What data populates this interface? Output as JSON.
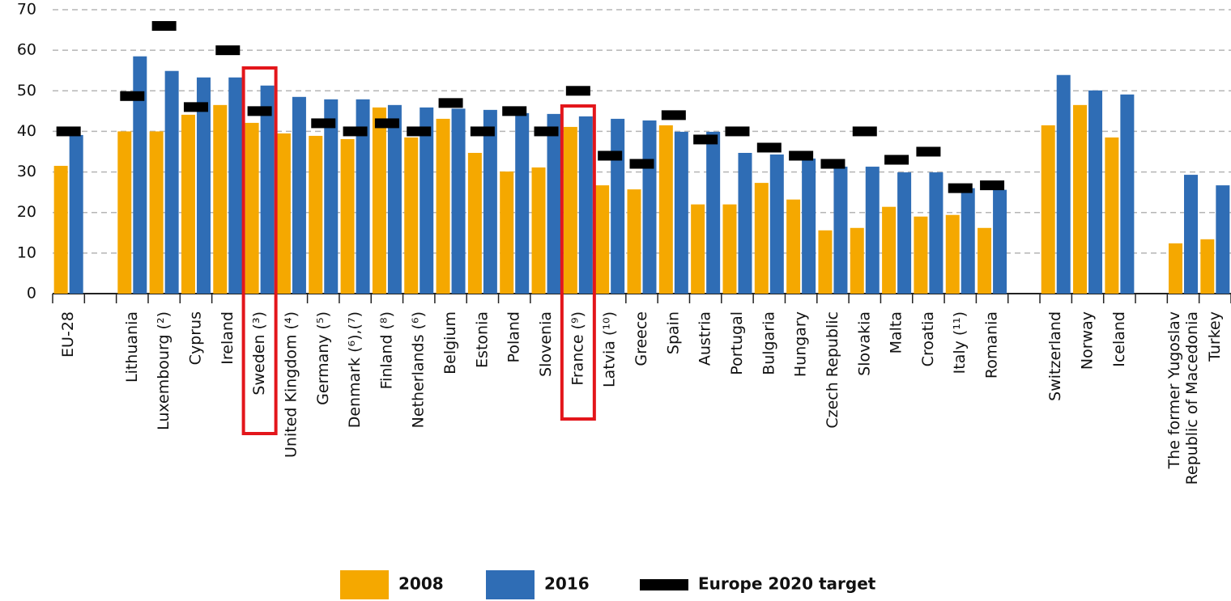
{
  "chart_data": {
    "type": "bar",
    "categories": [
      "EU-28",
      null,
      "Lithuania",
      "Luxembourg (²)",
      "Cyprus",
      "Ireland",
      "Sweden (³)",
      "United Kingdom (⁴)",
      "Germany (⁵)",
      "Denmark (⁶),(⁷)",
      "Finland (⁸)",
      "Netherlands (⁶)",
      "Belgium",
      "Estonia",
      "Poland",
      "Slovenia",
      "France (⁹)",
      "Latvia (¹⁰)",
      "Greece",
      "Spain",
      "Austria",
      "Portugal",
      "Bulgaria",
      "Hungary",
      "Czech Republic",
      "Slovakia",
      "Malta",
      "Croatia",
      "Italy (¹¹)",
      "Romania",
      null,
      "Switzerland",
      "Norway",
      "Iceland",
      null,
      "The former Yugoslav Republic of Macedonia",
      "Turkey"
    ],
    "series": [
      {
        "name": "2008",
        "color": "#f5a800",
        "values": [
          31.5,
          null,
          40,
          40,
          44.1,
          46.5,
          42.1,
          39.5,
          38.9,
          38.1,
          45.9,
          38.5,
          43.1,
          34.7,
          30.1,
          31.1,
          41.1,
          26.7,
          25.7,
          41.5,
          22.0,
          22.0,
          27.3,
          23.2,
          15.6,
          16.2,
          21.4,
          19.0,
          19.4,
          16.2,
          null,
          41.5,
          46.5,
          38.5,
          null,
          12.4,
          13.4
        ]
      },
      {
        "name": "2016",
        "color": "#2f6db5",
        "values": [
          39.1,
          null,
          58.5,
          54.9,
          53.3,
          53.3,
          51.3,
          48.5,
          47.9,
          47.9,
          46.5,
          45.9,
          45.6,
          45.3,
          44.5,
          44.3,
          43.7,
          43.1,
          42.7,
          39.9,
          39.9,
          34.7,
          34.3,
          33.3,
          31.3,
          31.3,
          29.9,
          29.9,
          26.0,
          25.6,
          null,
          53.9,
          50.1,
          49.1,
          null,
          29.3,
          26.7
        ]
      },
      {
        "name": "Europe 2020 target",
        "color": "#000000",
        "values": [
          40,
          null,
          48.7,
          66,
          46,
          60,
          45,
          null,
          42,
          40,
          42,
          40,
          47,
          40,
          45,
          40,
          50,
          34,
          32,
          44,
          38,
          40,
          36,
          34,
          32,
          40,
          33,
          35,
          26,
          26.7,
          null,
          null,
          null,
          null,
          null,
          null,
          null
        ]
      }
    ],
    "ylim": [
      0,
      70
    ],
    "yticks": [
      0,
      10,
      20,
      30,
      40,
      50,
      60,
      70
    ],
    "grid": true
  }
}
